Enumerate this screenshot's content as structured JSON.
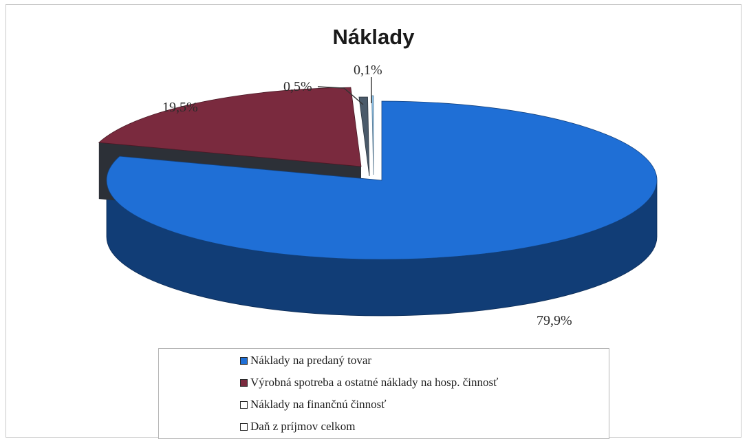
{
  "chart_data": {
    "type": "pie",
    "title": "Náklady",
    "slices": [
      {
        "label": "Náklady na predaný tovar",
        "value": 79.9,
        "value_label": "79,9%",
        "color": "#1f6fd6"
      },
      {
        "label": "Výrobná spotreba a ostatné náklady na hosp. činnosť",
        "value": 19.5,
        "value_label": "19,5%",
        "color": "#7a2a3e"
      },
      {
        "label": "Náklady na finančnú činnosť",
        "value": 0.5,
        "value_label": "0,5%",
        "color": "#4a5a6a"
      },
      {
        "label": "Daň z príjmov celkom",
        "value": 0.1,
        "value_label": "0,1%",
        "color": "#8fc6ee"
      }
    ],
    "style": "3d-exploded",
    "legend_position": "bottom"
  }
}
